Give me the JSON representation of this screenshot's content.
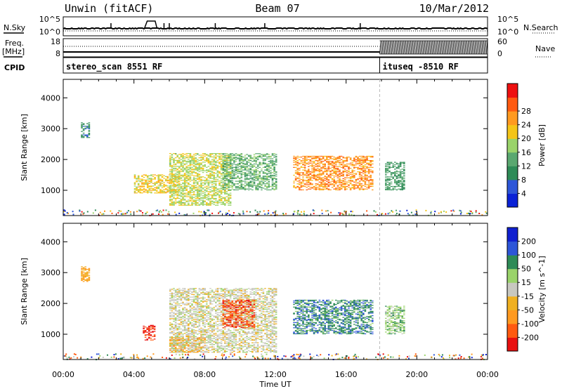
{
  "header": {
    "station": "Unwin (fitACF)",
    "beam": "Beam 07",
    "date": "10/Mar/2012"
  },
  "top_panels": {
    "nsky_label": "N.Sky",
    "nsearch_label": "N.Search",
    "freq_label": "Freq.",
    "freq_unit": "[MHz]",
    "nave_label": "Nave",
    "cpid_label": "CPID",
    "left_ticks_noise": [
      "10^5",
      "10^0"
    ],
    "right_ticks_noise": [
      "10^5",
      "10^0"
    ],
    "left_ticks_freq": [
      "18",
      "8"
    ],
    "right_ticks_freq": [
      "60",
      "0"
    ],
    "cpid_segments": [
      {
        "name": "stereo_scan 8551 RF",
        "start_hour": 0,
        "end_hour": 17.9
      },
      {
        "name": "ituseq -8510 RF",
        "start_hour": 17.9,
        "end_hour": 24
      }
    ]
  },
  "colors": {
    "power": [
      "#0a22d6",
      "#2d56d8",
      "#2e8b57",
      "#5aa870",
      "#9ad36a",
      "#f5c518",
      "#ff9a20",
      "#ff5a10",
      "#ee1010"
    ],
    "velocity": [
      "#e81010",
      "#ff5a10",
      "#ff9a20",
      "#f0b020",
      "#c8c8c0",
      "#9ad36a",
      "#2e8b57",
      "#2d56d8",
      "#1020d0"
    ]
  },
  "chart_data": [
    {
      "type": "heatmap",
      "title": "",
      "xlabel": "Time UT",
      "ylabel": "Slant Range [km]",
      "xlim": [
        0,
        24
      ],
      "ylim": [
        180,
        4600
      ],
      "x_tick_labels": [
        "00:00",
        "04:00",
        "08:00",
        "12:00",
        "16:00",
        "20:00",
        "00:00"
      ],
      "y_ticks": [
        1000,
        2000,
        3000,
        4000
      ],
      "colorbar": {
        "label": "Power [dB]",
        "ticks": [
          "4",
          "8",
          "12",
          "16",
          "20",
          "24",
          "28"
        ],
        "range": [
          0,
          30
        ]
      },
      "features": [
        {
          "t_start": 1.0,
          "t_end": 1.5,
          "range_start": 2700,
          "range_end": 3200,
          "value": 8
        },
        {
          "t_start": 4.0,
          "t_end": 6.5,
          "range_start": 900,
          "range_end": 1500,
          "value": 18
        },
        {
          "t_start": 6.0,
          "t_end": 9.5,
          "range_start": 500,
          "range_end": 2200,
          "value": 16
        },
        {
          "t_start": 9.0,
          "t_end": 12.0,
          "range_start": 1000,
          "range_end": 2200,
          "value": 12
        },
        {
          "t_start": 13.0,
          "t_end": 17.5,
          "range_start": 1000,
          "range_end": 2100,
          "value": 22
        },
        {
          "t_start": 18.2,
          "t_end": 19.3,
          "range_start": 1000,
          "range_end": 1900,
          "value": 10
        }
      ]
    },
    {
      "type": "heatmap",
      "title": "",
      "xlabel": "Time UT",
      "ylabel": "Slant Range [km]",
      "xlim": [
        0,
        24
      ],
      "ylim": [
        180,
        4600
      ],
      "x_tick_labels": [
        "00:00",
        "04:00",
        "08:00",
        "12:00",
        "16:00",
        "20:00",
        "00:00"
      ],
      "y_ticks": [
        1000,
        2000,
        3000,
        4000
      ],
      "colorbar": {
        "label": "Velocity [m s^-1]",
        "ticks": [
          "200",
          "100",
          "50",
          "15",
          "-15",
          "-50",
          "-100",
          "-200"
        ],
        "range": [
          -250,
          250
        ]
      },
      "features": [
        {
          "t_start": 1.0,
          "t_end": 1.5,
          "range_start": 2700,
          "range_end": 3200,
          "value": -80
        },
        {
          "t_start": 4.5,
          "t_end": 5.2,
          "range_start": 800,
          "range_end": 1300,
          "value": -200
        },
        {
          "t_start": 6.0,
          "t_end": 8.0,
          "range_start": 400,
          "range_end": 900,
          "value": -100
        },
        {
          "t_start": 6.0,
          "t_end": 12.0,
          "range_start": 400,
          "range_end": 2500,
          "value": 0
        },
        {
          "t_start": 9.0,
          "t_end": 10.8,
          "range_start": 1200,
          "range_end": 2100,
          "value": -180
        },
        {
          "t_start": 13.0,
          "t_end": 17.5,
          "range_start": 1000,
          "range_end": 2100,
          "value": 120
        },
        {
          "t_start": 18.2,
          "t_end": 19.3,
          "range_start": 1000,
          "range_end": 1900,
          "value": 60
        }
      ]
    }
  ]
}
